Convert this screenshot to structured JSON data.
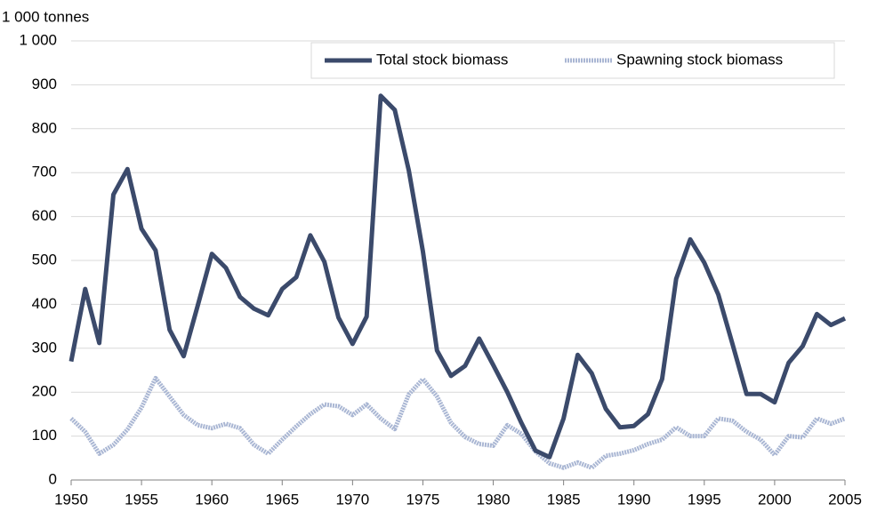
{
  "chart_data": {
    "type": "line",
    "y_axis_label": "1 000 tonnes",
    "x": [
      1950,
      1951,
      1952,
      1953,
      1954,
      1955,
      1956,
      1957,
      1958,
      1959,
      1960,
      1961,
      1962,
      1963,
      1964,
      1965,
      1966,
      1967,
      1968,
      1969,
      1970,
      1971,
      1972,
      1973,
      1974,
      1975,
      1976,
      1977,
      1978,
      1979,
      1980,
      1981,
      1982,
      1983,
      1984,
      1985,
      1986,
      1987,
      1988,
      1989,
      1990,
      1991,
      1992,
      1993,
      1994,
      1995,
      1996,
      1997,
      1998,
      1999,
      2000,
      2001,
      2002,
      2003,
      2004,
      2005
    ],
    "series": [
      {
        "name": "Total stock biomass",
        "color": "#3b4a6b",
        "values": [
          270,
          435,
          312,
          650,
          708,
          572,
          523,
          342,
          282,
          398,
          515,
          483,
          417,
          390,
          375,
          435,
          462,
          557,
          497,
          370,
          310,
          372,
          875,
          843,
          705,
          520,
          295,
          237,
          260,
          322,
          262,
          200,
          130,
          67,
          52,
          140,
          285,
          243,
          162,
          120,
          123,
          150,
          230,
          458,
          548,
          495,
          422,
          310,
          196,
          196,
          177,
          267,
          305,
          378,
          353,
          368
        ]
      },
      {
        "name": "Spawning stock biomass",
        "color": "#a9b6d3",
        "values": [
          140,
          110,
          60,
          80,
          115,
          165,
          232,
          190,
          148,
          125,
          118,
          128,
          118,
          80,
          60,
          92,
          122,
          150,
          172,
          168,
          148,
          172,
          140,
          116,
          195,
          230,
          190,
          130,
          98,
          82,
          78,
          125,
          105,
          65,
          38,
          28,
          40,
          28,
          55,
          60,
          68,
          82,
          92,
          120,
          100,
          100,
          140,
          135,
          110,
          92,
          57,
          100,
          97,
          140,
          128,
          140
        ]
      }
    ],
    "xlim": [
      1950,
      2005
    ],
    "xticks": [
      1950,
      1955,
      1960,
      1965,
      1970,
      1975,
      1980,
      1985,
      1990,
      1995,
      2000,
      2005
    ],
    "ylim": [
      0,
      1000
    ],
    "yticks": [
      0,
      100,
      200,
      300,
      400,
      500,
      600,
      700,
      800,
      900,
      {
        "value": 1000,
        "label": "1 000"
      }
    ],
    "grid": true,
    "legend": "top-right"
  }
}
